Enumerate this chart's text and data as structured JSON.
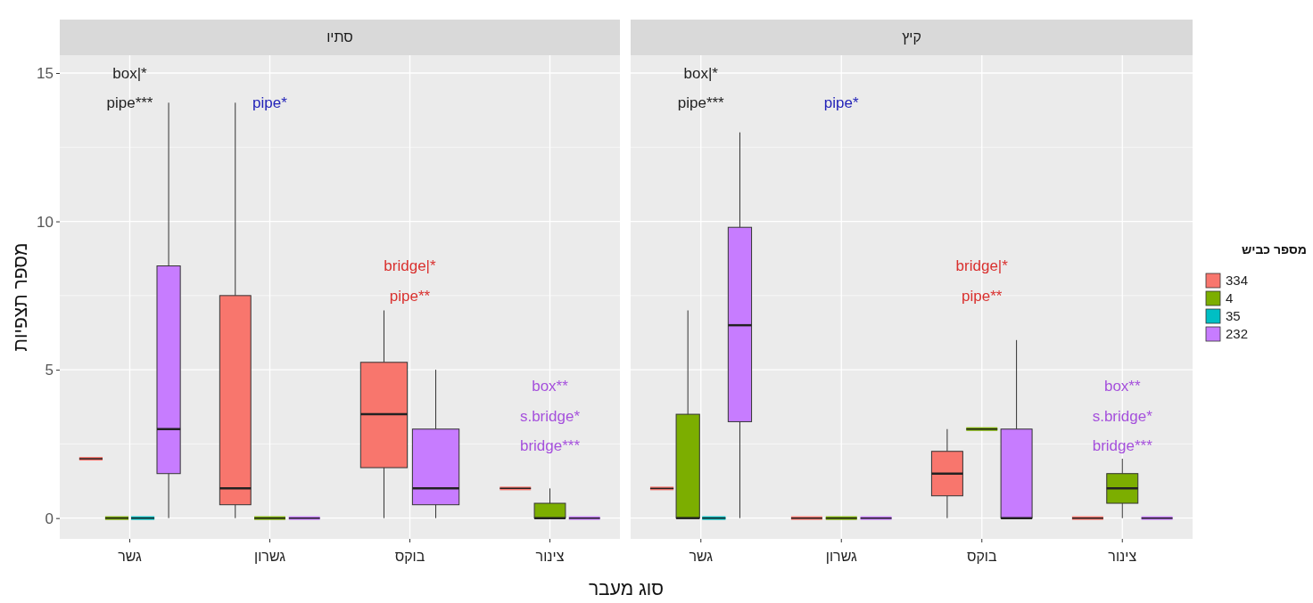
{
  "chart_data": [
    {
      "type": "box",
      "title": "סתיו",
      "xlabel": "סוג מעבר",
      "ylabel": "מספר תצפיות",
      "legend_title": "מספר כביש",
      "categories": [
        "גשר",
        "גשרון",
        "בוקס",
        "צינור"
      ],
      "ylim": [
        -0.7,
        15.6
      ],
      "yticks": [
        0,
        5,
        10,
        15
      ],
      "grid": true,
      "legend": "right",
      "series": [
        {
          "name": "334",
          "color": "#f8766d",
          "boxes": [
            {
              "low": 2,
              "q1": 2,
              "median": 2,
              "q3": 2,
              "high": 2
            },
            {
              "low": 0,
              "q1": 0.45,
              "median": 1,
              "q3": 7.5,
              "high": 14
            },
            {
              "low": 0,
              "q1": 1.7,
              "median": 3.5,
              "q3": 5.25,
              "high": 7
            },
            {
              "low": 1,
              "q1": 1,
              "median": 1,
              "q3": 1,
              "high": 1
            }
          ]
        },
        {
          "name": "4",
          "color": "#7cae00",
          "boxes": [
            {
              "low": 0,
              "q1": 0,
              "median": 0,
              "q3": 0,
              "high": 0
            },
            {
              "low": 0,
              "q1": 0,
              "median": 0,
              "q3": 0,
              "high": 0
            },
            null,
            {
              "low": 0,
              "q1": 0,
              "median": 0,
              "q3": 0.5,
              "high": 1
            }
          ]
        },
        {
          "name": "35",
          "color": "#00bfc4",
          "boxes": [
            {
              "low": 0,
              "q1": 0,
              "median": 0,
              "q3": 0,
              "high": 0
            },
            null,
            null,
            null
          ]
        },
        {
          "name": "232",
          "color": "#c77cff",
          "boxes": [
            {
              "low": 0,
              "q1": 1.5,
              "median": 3,
              "q3": 8.5,
              "high": 14
            },
            {
              "low": 0,
              "q1": 0,
              "median": 0,
              "q3": 0,
              "high": 0
            },
            {
              "low": 0,
              "q1": 0.45,
              "median": 1,
              "q3": 3,
              "high": 5
            },
            {
              "low": 0,
              "q1": 0,
              "median": 0,
              "q3": 0,
              "high": 0
            }
          ]
        }
      ],
      "annotations": [
        "box|*",
        "pipe***",
        "pipe*",
        "bridge|*",
        "pipe**",
        "box**",
        "s.bridge*",
        "bridge***"
      ]
    },
    {
      "type": "box",
      "title": "קיץ",
      "categories": [
        "גשר",
        "גשרון",
        "בוקס",
        "צינור"
      ],
      "ylim": [
        -0.7,
        15.6
      ],
      "yticks": [
        0,
        5,
        10,
        15
      ],
      "grid": true,
      "tick_labels": "x",
      "series": [
        {
          "color": "#f8766d",
          "boxes": [
            {
              "low": 1,
              "q1": 1,
              "median": 1,
              "q3": 1,
              "high": 1
            },
            {
              "low": 0,
              "q1": 0,
              "median": 0,
              "q3": 0,
              "high": 0
            },
            {
              "low": 0,
              "q1": 0.75,
              "median": 1.5,
              "q3": 2.25,
              "high": 3
            },
            {
              "low": 0,
              "q1": 0,
              "median": 0,
              "q3": 0,
              "high": 0
            }
          ]
        },
        {
          "color": "#7cae00",
          "boxes": [
            {
              "low": 0,
              "q1": 0,
              "median": 0,
              "q3": 3.5,
              "high": 7
            },
            {
              "low": 0,
              "q1": 0,
              "median": 0,
              "q3": 0,
              "high": 0
            },
            {
              "low": 3,
              "q1": 3,
              "median": 3,
              "q3": 3,
              "high": 3
            },
            {
              "low": 0,
              "q1": 0.5,
              "median": 1,
              "q3": 1.5,
              "high": 2
            }
          ]
        },
        {
          "color": "#00bfc4",
          "boxes": [
            {
              "low": 0,
              "q1": 0,
              "median": 0,
              "q3": 0,
              "high": 0
            },
            null,
            null,
            null
          ]
        },
        {
          "color": "#c77cff",
          "boxes": [
            {
              "low": 0,
              "q1": 3.25,
              "median": 6.5,
              "q3": 9.8,
              "high": 13
            },
            {
              "low": 0,
              "q1": 0,
              "median": 0,
              "q3": 0,
              "high": 0
            },
            {
              "low": 0,
              "q1": 0,
              "median": 0,
              "q3": 3,
              "high": 6
            },
            {
              "low": 0,
              "q1": 0,
              "median": 0,
              "q3": 0,
              "high": 0
            }
          ]
        }
      ],
      "annotations": [
        "box|*",
        "pipe***",
        "pipe*",
        "bridge|*",
        "pipe**",
        "box**",
        "s.bridge*",
        "bridge***"
      ]
    }
  ]
}
